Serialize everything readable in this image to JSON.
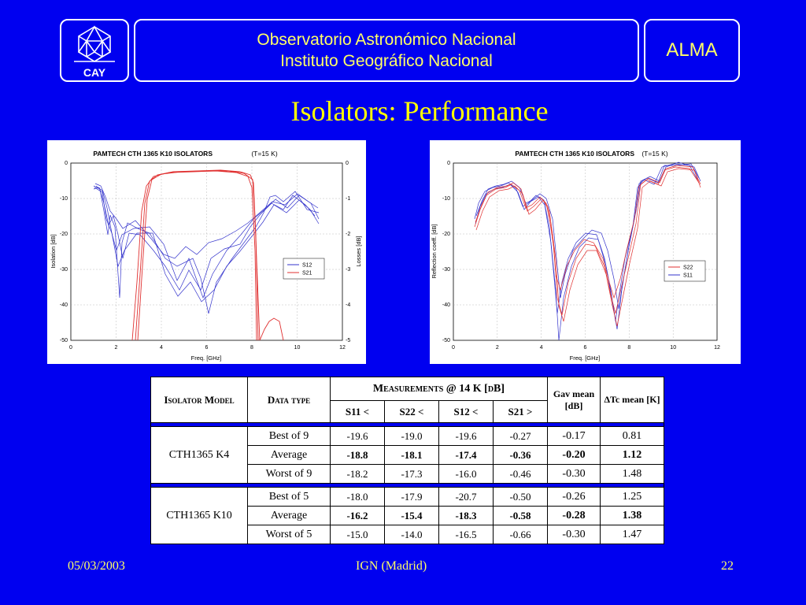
{
  "header": {
    "logo_text": "CAY",
    "line1": "Observatorio Astronómico Nacional",
    "line2": "Instituto Geográfico Nacional",
    "right_label": "ALMA"
  },
  "slide": {
    "title": "Isolators: Performance"
  },
  "plots": [
    {
      "title": "PAMTECH CTH 1365 K10 ISOLATORS",
      "subtitle": "(T=15 K)",
      "xlabel": "Freq. [GHz]",
      "ylabel_left": "Isolation [dB]",
      "ylabel_right": "Losses [dB]",
      "xticks": [
        "0",
        "2",
        "4",
        "6",
        "8",
        "10",
        "12"
      ],
      "yticks_left": [
        "0",
        "-10",
        "-20",
        "-30",
        "-40",
        "-50"
      ],
      "yticks_right": [
        "0",
        "-1",
        "-2",
        "-3",
        "-4",
        "-5"
      ],
      "legend": [
        {
          "name": "S12",
          "color": "#3333cc"
        },
        {
          "name": "S21",
          "color": "#e03030"
        }
      ]
    },
    {
      "title": "PAMTECH CTH 1365 K10 ISOLATORS",
      "subtitle": "(T=15 K)",
      "xlabel": "Freq. [GHz]",
      "ylabel_left": "Reflection coeff. [dB]",
      "xticks": [
        "0",
        "2",
        "4",
        "6",
        "8",
        "10",
        "12"
      ],
      "yticks_left": [
        "0",
        "-10",
        "-20",
        "-30",
        "-40",
        "-50"
      ],
      "legend": [
        {
          "name": "S22",
          "color": "#e03030"
        },
        {
          "name": "S11",
          "color": "#3333cc"
        }
      ]
    }
  ],
  "table": {
    "h_model": "Isolator Model",
    "h_type": "Data type",
    "h_meas": "Measurements @ 14 K [dB]",
    "h_gav": "Gav mean [dB]",
    "h_dtc": "ΔTc mean [K]",
    "sub": [
      "S11 <",
      "S22 <",
      "S12 <",
      "S21 >"
    ],
    "groups": [
      {
        "model": "CTH1365 K4",
        "rows": [
          {
            "type": "Best of 9",
            "vals": [
              "-19.6",
              "-19.0",
              "-19.6",
              "-0.27",
              "-0.17",
              "0.81"
            ],
            "bold": false
          },
          {
            "type": "Average",
            "vals": [
              "-18.8",
              "-18.1",
              "-17.4",
              "-0.36",
              "-0.20",
              "1.12"
            ],
            "bold": true
          },
          {
            "type": "Worst of 9",
            "vals": [
              "-18.2",
              "-17.3",
              "-16.0",
              "-0.46",
              "-0.30",
              "1.48"
            ],
            "bold": false
          }
        ]
      },
      {
        "model": "CTH1365 K10",
        "rows": [
          {
            "type": "Best of 5",
            "vals": [
              "-18.0",
              "-17.9",
              "-20.7",
              "-0.50",
              "-0.26",
              "1.25"
            ],
            "bold": false
          },
          {
            "type": "Average",
            "vals": [
              "-16.2",
              "-15.4",
              "-18.3",
              "-0.58",
              "-0.28",
              "1.38"
            ],
            "bold": true
          },
          {
            "type": "Worst of 5",
            "vals": [
              "-15.0",
              "-14.0",
              "-16.5",
              "-0.66",
              "-0.30",
              "1.47"
            ],
            "bold": false
          }
        ]
      }
    ]
  },
  "footer": {
    "date": "05/03/2003",
    "center": "IGN (Madrid)",
    "page": "22"
  },
  "colors": {
    "background": "#0000f0",
    "header_text": "#ffff66",
    "title_text": "#ffff00",
    "s12_s11_curve": "#3333cc",
    "s21_s22_curve": "#e03030"
  }
}
